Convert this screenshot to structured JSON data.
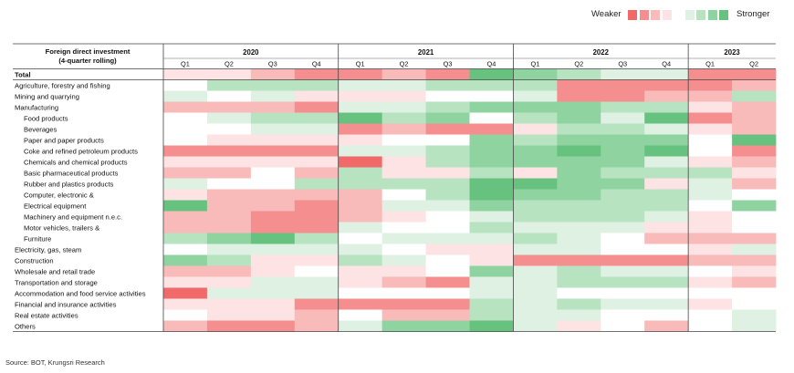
{
  "legend": {
    "weak_label": "Weaker",
    "strong_label": "Stronger",
    "swatches": [
      "#f06a6a",
      "#f58e8e",
      "#f9baba",
      "#fde3e3",
      "#ffffff",
      "#dff1e3",
      "#b7e3c1",
      "#8fd4a0",
      "#67c27f"
    ]
  },
  "source": "Source: BOT, Krungsri Research",
  "chart_data": {
    "type": "heatmap",
    "header_label_line1": "Foreign direct investment",
    "header_label_line2": "(4-quarter rolling)",
    "years": [
      {
        "label": "2020",
        "quarters": [
          "Q1",
          "Q2",
          "Q3",
          "Q4"
        ]
      },
      {
        "label": "2021",
        "quarters": [
          "Q1",
          "Q2",
          "Q3",
          "Q4"
        ]
      },
      {
        "label": "2022",
        "quarters": [
          "Q1",
          "Q2",
          "Q3",
          "Q4"
        ]
      },
      {
        "label": "2023",
        "quarters": [
          "Q1",
          "Q2"
        ]
      }
    ],
    "scale": {
      "min": -4,
      "max": 4,
      "negative_label": "Weaker",
      "positive_label": "Stronger"
    },
    "rows": [
      {
        "label": "Total",
        "bold": true,
        "values": [
          -1,
          -1,
          -2,
          -3,
          -3,
          -2,
          -3,
          4,
          3,
          2,
          1,
          1,
          -3,
          -3
        ]
      },
      {
        "label": "Agriculture, forestry and fishing",
        "bold": false,
        "values": [
          0,
          2,
          2,
          2,
          1,
          1,
          2,
          2,
          2,
          -3,
          -3,
          -3,
          -3,
          -2
        ]
      },
      {
        "label": "Mining and quarrying",
        "bold": false,
        "values": [
          1,
          0,
          1,
          -1,
          -1,
          -1,
          0,
          0,
          1,
          -3,
          -3,
          -2,
          -2,
          2
        ]
      },
      {
        "label": "Manufacturing",
        "bold": false,
        "values": [
          -2,
          -2,
          -2,
          -3,
          1,
          1,
          2,
          3,
          3,
          3,
          2,
          2,
          -1,
          -2
        ]
      },
      {
        "label": "Food products",
        "bold": true,
        "indent": true,
        "values": [
          0,
          1,
          2,
          2,
          4,
          2,
          3,
          0,
          2,
          3,
          1,
          4,
          -3,
          -2
        ]
      },
      {
        "label": "Beverages",
        "bold": true,
        "indent": true,
        "values": [
          0,
          0,
          1,
          1,
          -3,
          -2,
          -3,
          -3,
          -1,
          2,
          2,
          1,
          -1,
          -2
        ]
      },
      {
        "label": "Paper and paper products",
        "bold": true,
        "indent": true,
        "values": [
          0,
          -1,
          -1,
          -1,
          -1,
          0,
          0,
          3,
          2,
          3,
          3,
          3,
          0,
          4
        ]
      },
      {
        "label": "Coke and refined petroleum products",
        "bold": true,
        "indent": true,
        "values": [
          -3,
          -3,
          -3,
          -3,
          1,
          1,
          2,
          3,
          3,
          4,
          3,
          4,
          0,
          -3
        ]
      },
      {
        "label": "Chemicals and chemical products",
        "bold": true,
        "indent": true,
        "values": [
          -1,
          -1,
          -1,
          -1,
          -4,
          -1,
          2,
          3,
          3,
          3,
          3,
          1,
          -1,
          -2
        ]
      },
      {
        "label": "Basic pharmaceutical products",
        "bold": true,
        "indent": true,
        "values": [
          -2,
          -2,
          0,
          -2,
          2,
          -1,
          -1,
          2,
          -1,
          3,
          2,
          2,
          2,
          -1
        ]
      },
      {
        "label": "Rubber and plastics products",
        "bold": true,
        "indent": true,
        "values": [
          1,
          0,
          0,
          2,
          2,
          2,
          2,
          4,
          4,
          3,
          3,
          -1,
          1,
          -2
        ]
      },
      {
        "label": "Computer, electronic &",
        "bold": true,
        "indent": true,
        "values": [
          -1,
          -2,
          -2,
          -2,
          -2,
          0,
          2,
          4,
          3,
          3,
          2,
          2,
          1,
          0
        ]
      },
      {
        "label": "Electrical equipment",
        "bold": true,
        "indent": true,
        "values": [
          4,
          -2,
          -2,
          -3,
          -2,
          1,
          1,
          3,
          2,
          2,
          2,
          2,
          0,
          3
        ]
      },
      {
        "label": "Machinery and equipment n.e.c.",
        "bold": true,
        "indent": true,
        "values": [
          -2,
          -2,
          -3,
          -3,
          -2,
          -1,
          0,
          1,
          2,
          2,
          2,
          1,
          -1,
          0
        ]
      },
      {
        "label": "Motor vehicles, trailers &",
        "bold": true,
        "indent": true,
        "values": [
          -2,
          -2,
          -3,
          -3,
          1,
          0,
          0,
          2,
          1,
          1,
          1,
          -1,
          -1,
          0
        ]
      },
      {
        "label": "Furniture",
        "bold": true,
        "indent": true,
        "values": [
          2,
          3,
          4,
          2,
          0,
          1,
          1,
          1,
          2,
          1,
          0,
          -2,
          -2,
          -2
        ]
      },
      {
        "label": "Electricity, gas, steam",
        "bold": false,
        "values": [
          0,
          1,
          1,
          1,
          1,
          0,
          -1,
          -1,
          1,
          1,
          0,
          0,
          -1,
          1
        ]
      },
      {
        "label": "Construction",
        "bold": false,
        "values": [
          3,
          2,
          -1,
          -1,
          2,
          1,
          0,
          -1,
          -3,
          -3,
          -3,
          -3,
          -2,
          -2
        ]
      },
      {
        "label": "Wholesale and retail trade",
        "bold": false,
        "values": [
          -2,
          -2,
          -1,
          0,
          -1,
          -1,
          0,
          3,
          1,
          2,
          1,
          1,
          0,
          -1
        ]
      },
      {
        "label": "Transportation and storage",
        "bold": false,
        "values": [
          -1,
          -1,
          1,
          1,
          -1,
          -2,
          -3,
          1,
          1,
          2,
          2,
          2,
          -1,
          -2
        ]
      },
      {
        "label": "Accommodation and food service activities",
        "bold": false,
        "values": [
          -4,
          1,
          1,
          1,
          0,
          0,
          0,
          1,
          1,
          0,
          0,
          0,
          0,
          0
        ]
      },
      {
        "label": "Financial and insurance activities",
        "bold": false,
        "values": [
          -1,
          -1,
          -1,
          -3,
          -3,
          -3,
          -3,
          2,
          1,
          2,
          1,
          1,
          -1,
          0
        ]
      },
      {
        "label": "Real estate activities",
        "bold": false,
        "values": [
          0,
          -1,
          -1,
          -2,
          0,
          -2,
          -2,
          2,
          1,
          1,
          0,
          0,
          0,
          1
        ]
      },
      {
        "label": "Others",
        "bold": true,
        "values": [
          -2,
          -3,
          -3,
          -2,
          1,
          3,
          3,
          4,
          1,
          -1,
          0,
          -2,
          0,
          1
        ]
      }
    ]
  }
}
